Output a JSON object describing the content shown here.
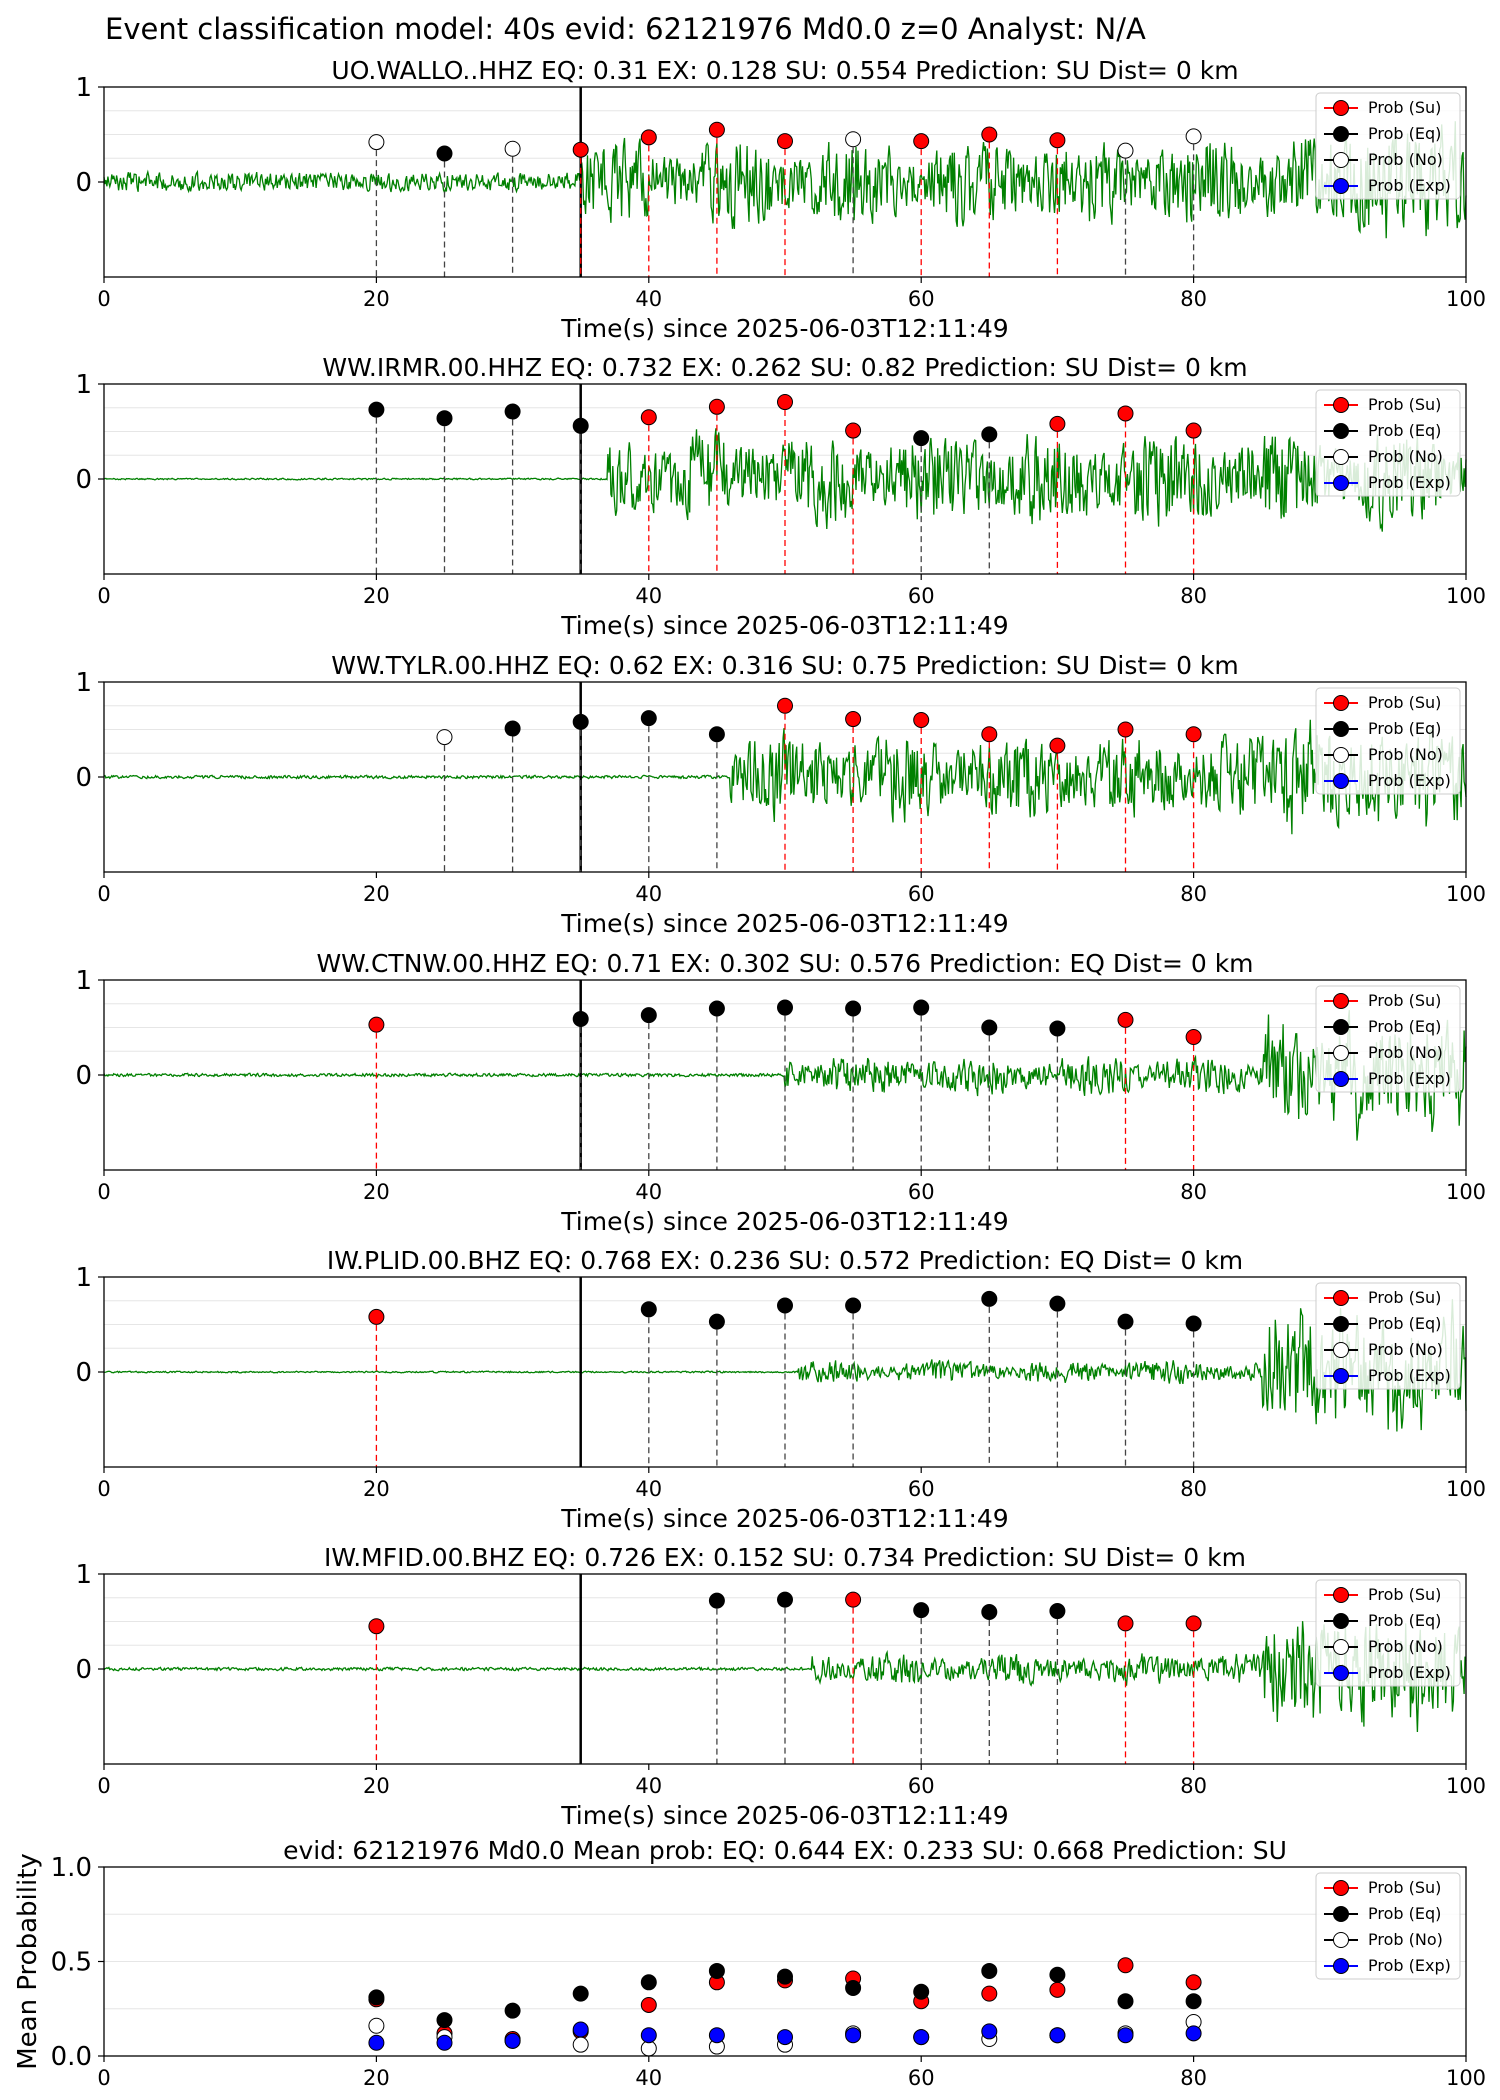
{
  "figure_title": "Event classification model: 40s evid: 62121976 Md0.0 z=0 Analyst: N/A",
  "xlabel": "Time(s) since 2025-06-03T12:11:49",
  "legend": [
    "Prob (Su)",
    "Prob (Eq)",
    "Prob (No)",
    "Prob (Exp)"
  ],
  "colors": {
    "su": "#ff0000",
    "eq": "#000000",
    "no": "#ffffff",
    "exp": "#0000ff",
    "waveform": "#008000",
    "su_line": "#ff0000",
    "eq_line": "#000000",
    "pick_line": "#000000"
  },
  "chart_data": [
    {
      "type": "scatter",
      "title": "UO.WALLO..HHZ   EQ: 0.31  EX: 0.128  SU: 0.554   Prediction: SU    Dist= 0 km",
      "xlim": [
        0,
        100
      ],
      "ylim": [
        -1,
        1
      ],
      "xticks": [
        "0",
        "20",
        "40",
        "60",
        "80",
        "100"
      ],
      "yticks": [
        "1",
        "0"
      ],
      "pick_time": 35,
      "waveform": {
        "noise_before": 0.12,
        "noise_after": 0.55,
        "onset": 35,
        "late_boost": 0.8
      },
      "windows": [
        {
          "t": 20,
          "class": "no",
          "prob": 0.42
        },
        {
          "t": 25,
          "class": "eq",
          "prob": 0.3
        },
        {
          "t": 30,
          "class": "no",
          "prob": 0.35
        },
        {
          "t": 35,
          "class": "su",
          "prob": 0.34
        },
        {
          "t": 40,
          "class": "su",
          "prob": 0.47
        },
        {
          "t": 45,
          "class": "su",
          "prob": 0.55
        },
        {
          "t": 50,
          "class": "su",
          "prob": 0.43
        },
        {
          "t": 55,
          "class": "no",
          "prob": 0.45
        },
        {
          "t": 60,
          "class": "su",
          "prob": 0.43
        },
        {
          "t": 65,
          "class": "su",
          "prob": 0.5
        },
        {
          "t": 70,
          "class": "su",
          "prob": 0.44
        },
        {
          "t": 75,
          "class": "no",
          "prob": 0.33
        },
        {
          "t": 80,
          "class": "no",
          "prob": 0.48
        }
      ]
    },
    {
      "type": "scatter",
      "title": "WW.IRMR.00.HHZ   EQ: 0.732  EX: 0.262  SU: 0.82   Prediction: SU    Dist= 0 km",
      "xlim": [
        0,
        100
      ],
      "ylim": [
        -1,
        1
      ],
      "xticks": [
        "0",
        "20",
        "40",
        "60",
        "80",
        "100"
      ],
      "yticks": [
        "1",
        "0"
      ],
      "pick_time": 35,
      "waveform": {
        "noise_before": 0.01,
        "noise_after": 0.6,
        "onset": 37,
        "late_boost": 0.3
      },
      "windows": [
        {
          "t": 20,
          "class": "eq",
          "prob": 0.73
        },
        {
          "t": 25,
          "class": "eq",
          "prob": 0.64
        },
        {
          "t": 30,
          "class": "eq",
          "prob": 0.71
        },
        {
          "t": 35,
          "class": "eq",
          "prob": 0.56
        },
        {
          "t": 40,
          "class": "su",
          "prob": 0.65
        },
        {
          "t": 45,
          "class": "su",
          "prob": 0.76
        },
        {
          "t": 50,
          "class": "su",
          "prob": 0.81
        },
        {
          "t": 55,
          "class": "su",
          "prob": 0.51
        },
        {
          "t": 60,
          "class": "eq",
          "prob": 0.43
        },
        {
          "t": 65,
          "class": "eq",
          "prob": 0.47
        },
        {
          "t": 70,
          "class": "su",
          "prob": 0.58
        },
        {
          "t": 75,
          "class": "su",
          "prob": 0.69
        },
        {
          "t": 80,
          "class": "su",
          "prob": 0.51
        }
      ]
    },
    {
      "type": "scatter",
      "title": "WW.TYLR.00.HHZ   EQ: 0.62  EX: 0.316  SU: 0.75   Prediction: SU    Dist= 0 km",
      "xlim": [
        0,
        100
      ],
      "ylim": [
        -1,
        1
      ],
      "xticks": [
        "0",
        "20",
        "40",
        "60",
        "80",
        "100"
      ],
      "yticks": [
        "1",
        "0"
      ],
      "pick_time": 35,
      "waveform": {
        "noise_before": 0.02,
        "noise_after": 0.55,
        "onset": 46,
        "late_boost": 0.8
      },
      "windows": [
        {
          "t": 25,
          "class": "no",
          "prob": 0.42
        },
        {
          "t": 30,
          "class": "eq",
          "prob": 0.51
        },
        {
          "t": 35,
          "class": "eq",
          "prob": 0.58
        },
        {
          "t": 40,
          "class": "eq",
          "prob": 0.62
        },
        {
          "t": 45,
          "class": "eq",
          "prob": 0.45
        },
        {
          "t": 50,
          "class": "su",
          "prob": 0.75
        },
        {
          "t": 55,
          "class": "su",
          "prob": 0.61
        },
        {
          "t": 60,
          "class": "su",
          "prob": 0.6
        },
        {
          "t": 65,
          "class": "su",
          "prob": 0.45
        },
        {
          "t": 70,
          "class": "su",
          "prob": 0.33
        },
        {
          "t": 75,
          "class": "su",
          "prob": 0.5
        },
        {
          "t": 80,
          "class": "su",
          "prob": 0.45
        }
      ]
    },
    {
      "type": "scatter",
      "title": "WW.CTNW.00.HHZ   EQ: 0.71  EX: 0.302  SU: 0.576   Prediction: EQ    Dist= 0 km",
      "xlim": [
        0,
        100
      ],
      "ylim": [
        -1,
        1
      ],
      "xticks": [
        "0",
        "20",
        "40",
        "60",
        "80",
        "100"
      ],
      "yticks": [
        "1",
        "0"
      ],
      "pick_time": 35,
      "waveform": {
        "noise_before": 0.02,
        "noise_after": 0.25,
        "onset": 50,
        "late_boost": 0.9
      },
      "windows": [
        {
          "t": 20,
          "class": "su",
          "prob": 0.53
        },
        {
          "t": 35,
          "class": "eq",
          "prob": 0.59
        },
        {
          "t": 40,
          "class": "eq",
          "prob": 0.63
        },
        {
          "t": 45,
          "class": "eq",
          "prob": 0.7
        },
        {
          "t": 50,
          "class": "eq",
          "prob": 0.71
        },
        {
          "t": 55,
          "class": "eq",
          "prob": 0.7
        },
        {
          "t": 60,
          "class": "eq",
          "prob": 0.71
        },
        {
          "t": 65,
          "class": "eq",
          "prob": 0.5
        },
        {
          "t": 70,
          "class": "eq",
          "prob": 0.49
        },
        {
          "t": 75,
          "class": "su",
          "prob": 0.58
        },
        {
          "t": 80,
          "class": "su",
          "prob": 0.4
        }
      ]
    },
    {
      "type": "scatter",
      "title": "IW.PLID.00.BHZ   EQ: 0.768  EX: 0.236  SU: 0.572   Prediction: EQ    Dist= 0 km",
      "xlim": [
        0,
        100
      ],
      "ylim": [
        -1,
        1
      ],
      "xticks": [
        "0",
        "20",
        "40",
        "60",
        "80",
        "100"
      ],
      "yticks": [
        "1",
        "0"
      ],
      "pick_time": 35,
      "waveform": {
        "noise_before": 0.01,
        "noise_after": 0.15,
        "onset": 51,
        "late_boost": 0.9
      },
      "windows": [
        {
          "t": 20,
          "class": "su",
          "prob": 0.58
        },
        {
          "t": 40,
          "class": "eq",
          "prob": 0.66
        },
        {
          "t": 45,
          "class": "eq",
          "prob": 0.53
        },
        {
          "t": 50,
          "class": "eq",
          "prob": 0.7
        },
        {
          "t": 55,
          "class": "eq",
          "prob": 0.7
        },
        {
          "t": 65,
          "class": "eq",
          "prob": 0.77
        },
        {
          "t": 70,
          "class": "eq",
          "prob": 0.72
        },
        {
          "t": 75,
          "class": "eq",
          "prob": 0.53
        },
        {
          "t": 80,
          "class": "eq",
          "prob": 0.51
        }
      ]
    },
    {
      "type": "scatter",
      "title": "IW.MFID.00.BHZ   EQ: 0.726  EX: 0.152  SU: 0.734   Prediction: SU    Dist= 0 km",
      "xlim": [
        0,
        100
      ],
      "ylim": [
        -1,
        1
      ],
      "xticks": [
        "0",
        "20",
        "40",
        "60",
        "80",
        "100"
      ],
      "yticks": [
        "1",
        "0"
      ],
      "pick_time": 35,
      "waveform": {
        "noise_before": 0.02,
        "noise_after": 0.2,
        "onset": 52,
        "late_boost": 0.85
      },
      "windows": [
        {
          "t": 20,
          "class": "su",
          "prob": 0.45
        },
        {
          "t": 45,
          "class": "eq",
          "prob": 0.72
        },
        {
          "t": 50,
          "class": "eq",
          "prob": 0.73
        },
        {
          "t": 55,
          "class": "su",
          "prob": 0.73
        },
        {
          "t": 60,
          "class": "eq",
          "prob": 0.62
        },
        {
          "t": 65,
          "class": "eq",
          "prob": 0.6
        },
        {
          "t": 70,
          "class": "eq",
          "prob": 0.61
        },
        {
          "t": 75,
          "class": "su",
          "prob": 0.48
        },
        {
          "t": 80,
          "class": "su",
          "prob": 0.48
        }
      ]
    },
    {
      "type": "scatter",
      "title": "evid: 62121976  Md0.0   Mean prob:   EQ: 0.644  EX: 0.233  SU: 0.668   Prediction: SU",
      "ylabel": "Mean Probability",
      "xlim": [
        0,
        100
      ],
      "ylim": [
        0,
        1
      ],
      "xticks": [
        "0",
        "20",
        "40",
        "60",
        "80",
        "100"
      ],
      "yticks": [
        "0.0",
        "0.5",
        "1.0"
      ],
      "x": [
        20,
        25,
        30,
        35,
        40,
        45,
        50,
        55,
        60,
        65,
        70,
        75,
        80
      ],
      "series": [
        {
          "key": "su",
          "values": [
            0.3,
            0.12,
            0.09,
            0.13,
            0.27,
            0.39,
            0.4,
            0.41,
            0.29,
            0.33,
            0.35,
            0.48,
            0.39
          ]
        },
        {
          "key": "eq",
          "values": [
            0.31,
            0.19,
            0.24,
            0.33,
            0.39,
            0.45,
            0.42,
            0.36,
            0.34,
            0.45,
            0.43,
            0.29,
            0.29
          ]
        },
        {
          "key": "no",
          "values": [
            0.16,
            0.1,
            0.08,
            0.06,
            0.04,
            0.05,
            0.06,
            0.12,
            0.1,
            0.09,
            0.11,
            0.12,
            0.18
          ]
        },
        {
          "key": "exp",
          "values": [
            0.07,
            0.07,
            0.08,
            0.14,
            0.11,
            0.11,
            0.1,
            0.11,
            0.1,
            0.13,
            0.11,
            0.11,
            0.12
          ]
        }
      ]
    }
  ]
}
